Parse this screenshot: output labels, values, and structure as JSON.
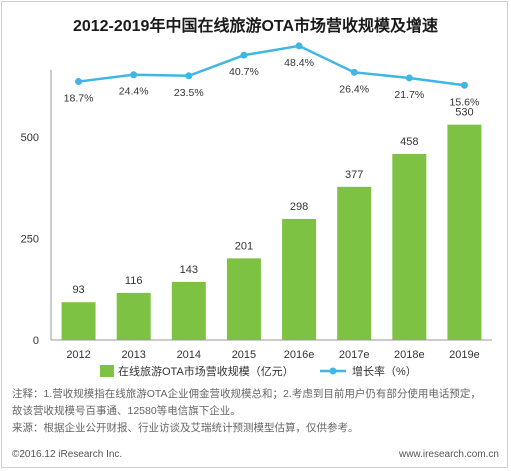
{
  "chart_data": {
    "type": "bar",
    "title": "2012-2019年中国在线旅游OTA市场营收规模及增速",
    "categories": [
      "2012",
      "2013",
      "2014",
      "2015",
      "2016e",
      "2017e",
      "2018e",
      "2019e"
    ],
    "bar_series": {
      "name": "在线旅游OTA市场营收规模（亿元）",
      "values": [
        93,
        116,
        143,
        201,
        298,
        377,
        458,
        530
      ],
      "color": "#7dc242"
    },
    "line_series": {
      "name": "增长率（%）",
      "values": [
        18.7,
        24.4,
        23.5,
        40.7,
        48.4,
        26.4,
        21.7,
        15.6
      ],
      "labels": [
        "18.7%",
        "24.4%",
        "23.5%",
        "40.7%",
        "48.4%",
        "26.4%",
        "21.7%",
        "15.6%"
      ],
      "color": "#3fb6e3"
    },
    "yticks": [
      "0",
      "250",
      "500"
    ],
    "ylim": [
      0,
      640
    ],
    "grid": false,
    "legend_position": "bottom"
  },
  "notes": {
    "line1": "注释：1.营收规模指在线旅游OTA企业佣金营收规模总和；2.考虑到目前用户仍有部分使用电话预定，",
    "line2": "故该营收规模号百事通、12580等电信旗下企业。",
    "line3": "来源：根据企业公开财报、行业访谈及艾瑞统计预测模型估算，仅供参考。"
  },
  "footer": {
    "copyright": "©2016.12 iResearch Inc.",
    "website": "www.iresearch.com.cn"
  }
}
